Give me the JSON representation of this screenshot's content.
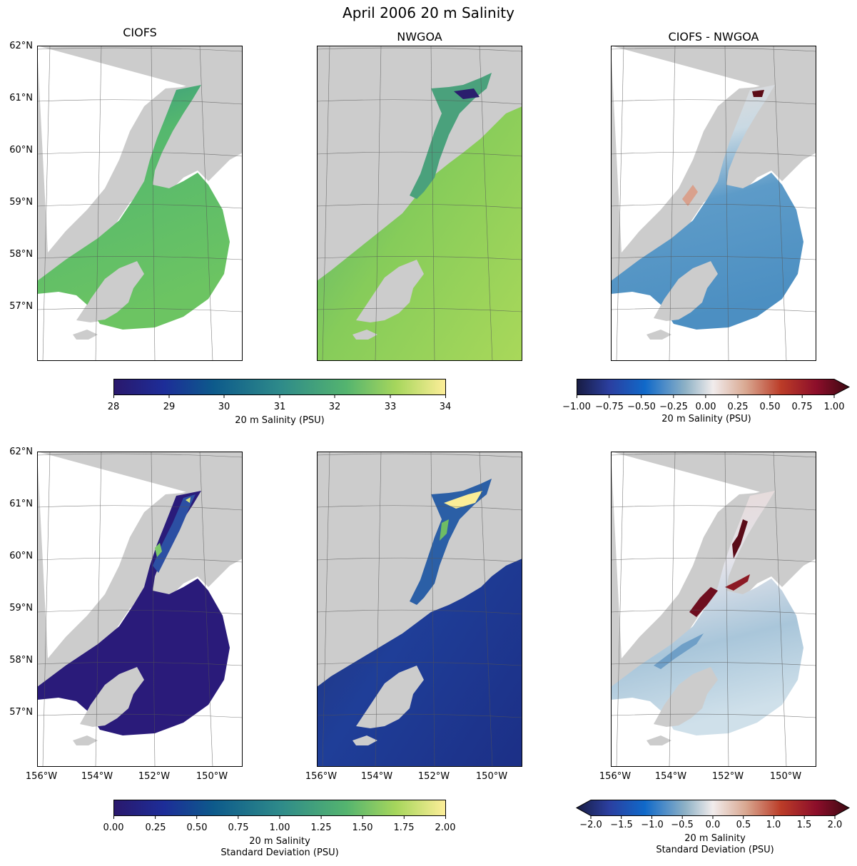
{
  "figure": {
    "title": "April 2006 20 m Salinity"
  },
  "panel_titles": [
    "CIOFS",
    "NWGOA",
    "CIOFS - NWGOA"
  ],
  "lat_labels": [
    "62°N",
    "61°N",
    "60°N",
    "59°N",
    "58°N",
    "57°N"
  ],
  "lon_labels": [
    "156°W",
    "154°W",
    "152°W",
    "150°W"
  ],
  "colorbars": {
    "salinity": {
      "label": "20 m Salinity (PSU)",
      "ticks": [
        "28",
        "29",
        "30",
        "31",
        "32",
        "33",
        "34"
      ],
      "colormap": "haline",
      "range": [
        28,
        34
      ]
    },
    "salinity_diff": {
      "label": "20 m Salinity (PSU)",
      "ticks": [
        "−1.00",
        "−0.75",
        "−0.50",
        "−0.25",
        "0.00",
        "0.25",
        "0.50",
        "0.75",
        "1.00"
      ],
      "colormap": "balance",
      "range": [
        -1.0,
        1.0
      ],
      "extend": "max"
    },
    "stddev": {
      "label_line1": "20 m Salinity",
      "label_line2": "Standard Deviation (PSU)",
      "ticks": [
        "0.00",
        "0.25",
        "0.50",
        "0.75",
        "1.00",
        "1.25",
        "1.50",
        "1.75",
        "2.00"
      ],
      "colormap": "haline",
      "range": [
        0,
        2
      ]
    },
    "stddev_diff": {
      "label_line1": "20 m Salinity",
      "label_line2": "Standard Deviation (PSU)",
      "ticks": [
        "−2.0",
        "−1.5",
        "−1.0",
        "−0.5",
        "0.0",
        "0.5",
        "1.0",
        "1.5",
        "2.0"
      ],
      "colormap": "balance",
      "range": [
        -2.0,
        2.0
      ],
      "extend": "both"
    }
  },
  "colors": {
    "land": "#cccccc",
    "ocean_nodata": "#ffffff",
    "grid": "#555555"
  }
}
